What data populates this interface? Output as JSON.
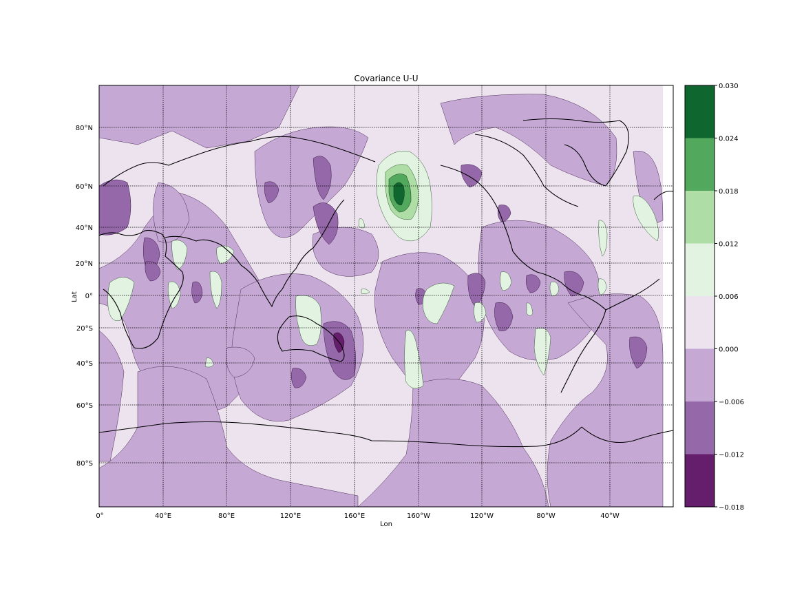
{
  "chart_data": {
    "type": "contour-map",
    "title": "Covariance U-U",
    "xlabel": "Lon",
    "ylabel": "Lat",
    "lat_ticks": [
      "80°N",
      "60°N",
      "40°N",
      "20°N",
      "0°",
      "20°S",
      "40°S",
      "60°S",
      "80°S"
    ],
    "lon_ticks": [
      "0°",
      "40°E",
      "80°E",
      "120°E",
      "160°E",
      "160°W",
      "120°W",
      "80°W",
      "40°W"
    ],
    "colorbar": {
      "levels": [
        -0.018,
        -0.012,
        -0.006,
        0.0,
        0.006,
        0.012,
        0.018,
        0.024,
        0.03
      ],
      "labels": [
        "0.030",
        "0.024",
        "0.018",
        "0.012",
        "0.006",
        "0.000",
        "−0.006",
        "−0.012",
        "−0.018"
      ],
      "colors": [
        "#641e6b",
        "#9568a9",
        "#c5a9d4",
        "#ede3ef",
        "#e3f3e1",
        "#aedda5",
        "#52a85c",
        "#10662f"
      ]
    }
  }
}
